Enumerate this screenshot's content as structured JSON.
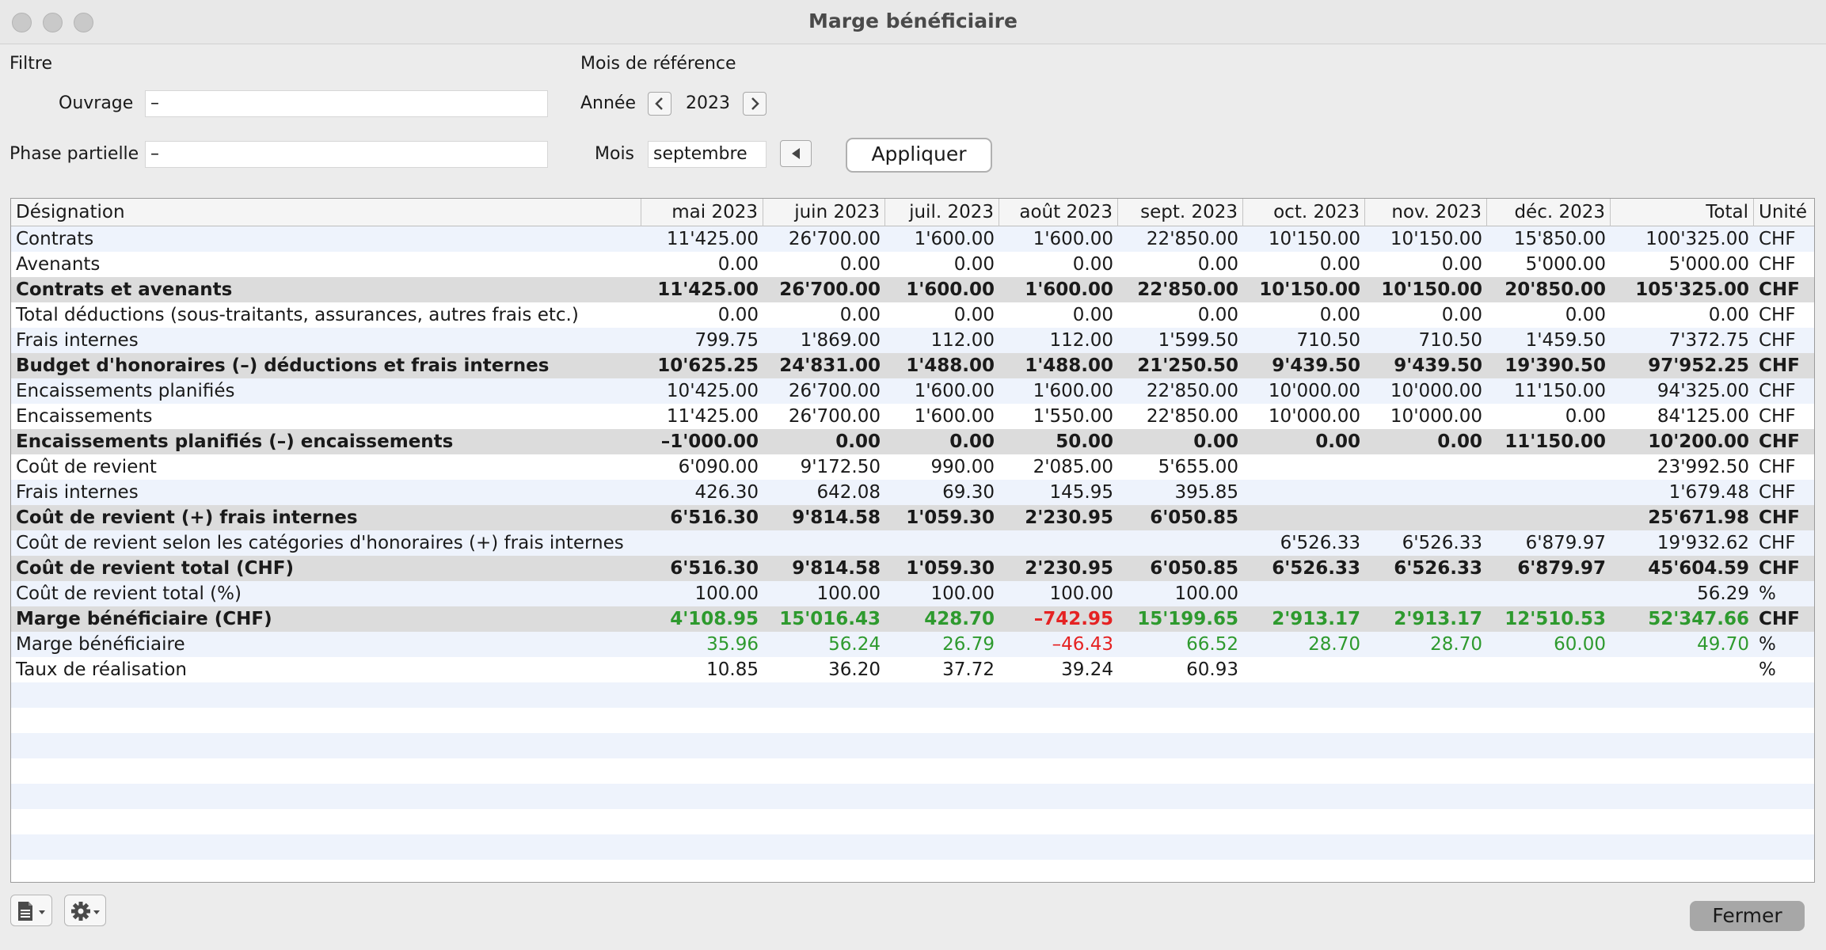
{
  "window": {
    "title": "Marge bénéficiaire"
  },
  "filter": {
    "section_label": "Filtre",
    "ouvrage_label": "Ouvrage",
    "ouvrage_value": "–",
    "phase_label": "Phase partielle",
    "phase_value": "–"
  },
  "reference": {
    "section_label": "Mois de référence",
    "year_label": "Année",
    "year_value": "2023",
    "month_label": "Mois",
    "month_value": "septembre",
    "apply_label": "Appliquer"
  },
  "table": {
    "headers": [
      "Désignation",
      "mai 2023",
      "juin 2023",
      "juil. 2023",
      "août 2023",
      "sept. 2023",
      "oct. 2023",
      "nov. 2023",
      "déc. 2023",
      "Total",
      "Unité"
    ],
    "rows": [
      {
        "label": "Contrats",
        "bold": false,
        "values": [
          "11'425.00",
          "26'700.00",
          "1'600.00",
          "1'600.00",
          "22'850.00",
          "10'150.00",
          "10'150.00",
          "15'850.00",
          "100'325.00"
        ],
        "unit": "CHF"
      },
      {
        "label": "Avenants",
        "bold": false,
        "values": [
          "0.00",
          "0.00",
          "0.00",
          "0.00",
          "0.00",
          "0.00",
          "0.00",
          "5'000.00",
          "5'000.00"
        ],
        "unit": "CHF"
      },
      {
        "label": "Contrats et avenants",
        "bold": true,
        "values": [
          "11'425.00",
          "26'700.00",
          "1'600.00",
          "1'600.00",
          "22'850.00",
          "10'150.00",
          "10'150.00",
          "20'850.00",
          "105'325.00"
        ],
        "unit": "CHF"
      },
      {
        "label": "Total déductions (sous-traitants, assurances, autres frais etc.)",
        "bold": false,
        "values": [
          "0.00",
          "0.00",
          "0.00",
          "0.00",
          "0.00",
          "0.00",
          "0.00",
          "0.00",
          "0.00"
        ],
        "unit": "CHF"
      },
      {
        "label": "Frais internes",
        "bold": false,
        "values": [
          "799.75",
          "1'869.00",
          "112.00",
          "112.00",
          "1'599.50",
          "710.50",
          "710.50",
          "1'459.50",
          "7'372.75"
        ],
        "unit": "CHF"
      },
      {
        "label": "Budget d'honoraires (–) déductions et frais internes",
        "bold": true,
        "values": [
          "10'625.25",
          "24'831.00",
          "1'488.00",
          "1'488.00",
          "21'250.50",
          "9'439.50",
          "9'439.50",
          "19'390.50",
          "97'952.25"
        ],
        "unit": "CHF"
      },
      {
        "label": "Encaissements planifiés",
        "bold": false,
        "values": [
          "10'425.00",
          "26'700.00",
          "1'600.00",
          "1'600.00",
          "22'850.00",
          "10'000.00",
          "10'000.00",
          "11'150.00",
          "94'325.00"
        ],
        "unit": "CHF"
      },
      {
        "label": "Encaissements",
        "bold": false,
        "values": [
          "11'425.00",
          "26'700.00",
          "1'600.00",
          "1'550.00",
          "22'850.00",
          "10'000.00",
          "10'000.00",
          "0.00",
          "84'125.00"
        ],
        "unit": "CHF"
      },
      {
        "label": "Encaissements planifiés (–) encaissements",
        "bold": true,
        "values": [
          "–1'000.00",
          "0.00",
          "0.00",
          "50.00",
          "0.00",
          "0.00",
          "0.00",
          "11'150.00",
          "10'200.00"
        ],
        "unit": "CHF"
      },
      {
        "label": "Coût de revient",
        "bold": false,
        "values": [
          "6'090.00",
          "9'172.50",
          "990.00",
          "2'085.00",
          "5'655.00",
          "",
          "",
          "",
          "23'992.50"
        ],
        "unit": "CHF"
      },
      {
        "label": "Frais internes",
        "bold": false,
        "values": [
          "426.30",
          "642.08",
          "69.30",
          "145.95",
          "395.85",
          "",
          "",
          "",
          "1'679.48"
        ],
        "unit": "CHF"
      },
      {
        "label": "Coût de revient (+) frais internes",
        "bold": true,
        "values": [
          "6'516.30",
          "9'814.58",
          "1'059.30",
          "2'230.95",
          "6'050.85",
          "",
          "",
          "",
          "25'671.98"
        ],
        "unit": "CHF"
      },
      {
        "label": "Coût de revient selon les catégories d'honoraires (+) frais internes",
        "bold": false,
        "values": [
          "",
          "",
          "",
          "",
          "",
          "6'526.33",
          "6'526.33",
          "6'879.97",
          "19'932.62"
        ],
        "unit": "CHF"
      },
      {
        "label": "Coût de revient total (CHF)",
        "bold": true,
        "values": [
          "6'516.30",
          "9'814.58",
          "1'059.30",
          "2'230.95",
          "6'050.85",
          "6'526.33",
          "6'526.33",
          "6'879.97",
          "45'604.59"
        ],
        "unit": "CHF"
      },
      {
        "label": "Coût de revient total (%)",
        "bold": false,
        "values": [
          "100.00",
          "100.00",
          "100.00",
          "100.00",
          "100.00",
          "",
          "",
          "",
          "56.29"
        ],
        "unit": "%"
      },
      {
        "label": "Marge bénéficiaire (CHF)",
        "bold": true,
        "color": "green",
        "values": [
          "4'108.95",
          "15'016.43",
          "428.70",
          "–742.95",
          "15'199.65",
          "2'913.17",
          "2'913.17",
          "12'510.53",
          "52'347.66"
        ],
        "negatives": [
          3
        ],
        "unit": "CHF"
      },
      {
        "label": "Marge bénéficiaire",
        "bold": false,
        "color": "green",
        "values": [
          "35.96",
          "56.24",
          "26.79",
          "–46.43",
          "66.52",
          "28.70",
          "28.70",
          "60.00",
          "49.70"
        ],
        "negatives": [
          3
        ],
        "unit": "%"
      },
      {
        "label": "Taux de réalisation",
        "bold": false,
        "values": [
          "10.85",
          "36.20",
          "37.72",
          "39.24",
          "60.93",
          "",
          "",
          "",
          ""
        ],
        "unit": "%"
      }
    ],
    "empty_rows": 8
  },
  "footer": {
    "doc_icon": "document-icon",
    "gear_icon": "gear-icon",
    "close_label": "Fermer"
  },
  "colors": {
    "positive": "#2e9a2e",
    "negative": "#e52222",
    "stripe": "#eef3fc",
    "bold_row": "#dcdcdc"
  }
}
